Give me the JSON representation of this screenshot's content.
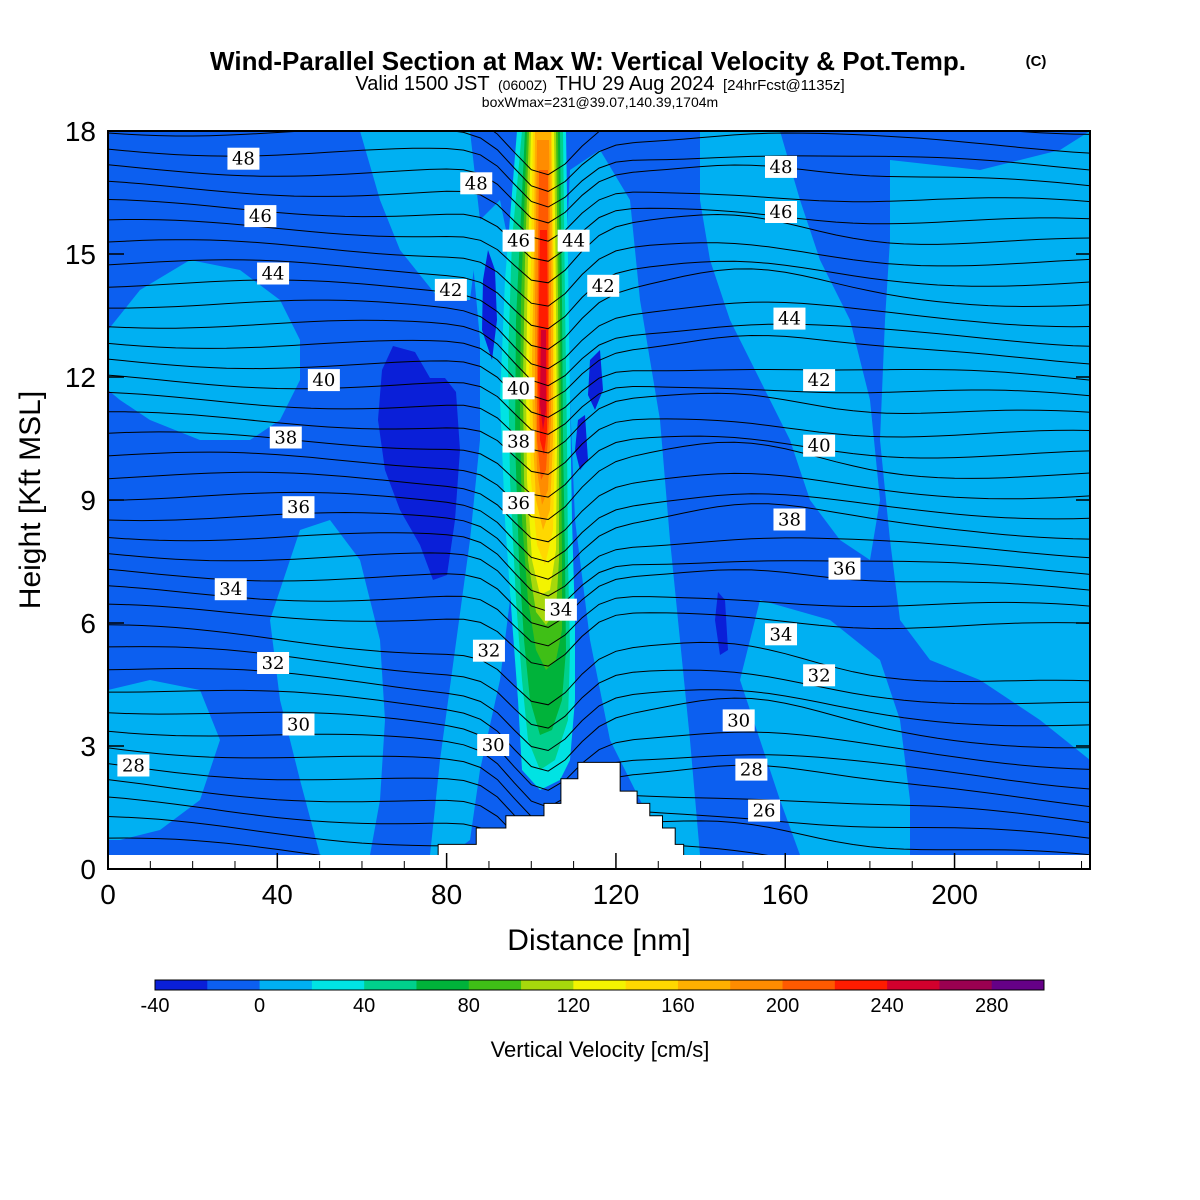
{
  "header": {
    "title_main": "Wind-Parallel Section at Max W: Vertical Velocity & Pot.Temp.",
    "title_mark": "(C)",
    "valid_prefix": "Valid 1500 JST",
    "valid_z": "(0600Z)",
    "valid_date": "THU 29 Aug 2024",
    "forecast": "[24hrFcst@1135z]",
    "box_info": "boxWmax=231@39.07,140.39,1704m"
  },
  "colorbar": {
    "label": "Vertical Velocity [cm/s]",
    "ticks": [
      "-40",
      "0",
      "40",
      "80",
      "120",
      "160",
      "200",
      "240",
      "280"
    ],
    "levels": [
      -40,
      -20,
      0,
      20,
      40,
      60,
      80,
      100,
      120,
      140,
      160,
      180,
      200,
      220,
      240,
      260,
      280,
      300
    ],
    "colors": [
      "#0a1fd8",
      "#0c5ff0",
      "#00b0f2",
      "#00e3e3",
      "#00d08c",
      "#00b33a",
      "#3fbf16",
      "#a6d80c",
      "#f3f300",
      "#ffd800",
      "#ffb000",
      "#ff8c00",
      "#ff5a00",
      "#ff1c00",
      "#d2002d",
      "#9a0050",
      "#650087"
    ]
  },
  "chart_data": {
    "type": "heatmap",
    "title": "Wind-Parallel Section at Max W: Vertical Velocity & Pot.Temp.",
    "xlabel": "Distance [nm]",
    "ylabel": "Height [Kft MSL]",
    "xlim": [
      0,
      232
    ],
    "ylim": [
      0,
      18
    ],
    "x_ticks": [
      "0",
      "40",
      "80",
      "120",
      "160",
      "200"
    ],
    "y_ticks": [
      "0",
      "3",
      "6",
      "9",
      "12",
      "15",
      "18"
    ],
    "colorbar_label": "Vertical Velocity [cm/s]",
    "max_w": {
      "value": 231,
      "units": "cm/s",
      "x": 104,
      "y_range": [
        9,
        12
      ]
    },
    "updraft_core": {
      "x_center": 103,
      "y_range": [
        2.5,
        18
      ],
      "peak": 231
    },
    "downdraft_core": {
      "x_range": [
        65,
        85
      ],
      "y_range": [
        7,
        13
      ],
      "min": -40
    },
    "terrain": {
      "x": [
        78,
        80,
        82,
        87,
        90,
        94,
        98,
        103,
        107,
        111,
        117,
        121,
        125,
        128,
        131,
        134,
        136
      ],
      "height": [
        0.6,
        0.6,
        0.6,
        1.0,
        1.0,
        1.3,
        1.3,
        1.6,
        2.2,
        2.6,
        2.6,
        1.9,
        1.6,
        1.3,
        1.0,
        0.6,
        0.3
      ]
    },
    "contour_labels": [
      {
        "text": "48",
        "x": 32,
        "y": 17.3
      },
      {
        "text": "48",
        "x": 87,
        "y": 16.7
      },
      {
        "text": "48",
        "x": 159,
        "y": 17.1
      },
      {
        "text": "46",
        "x": 36,
        "y": 15.9
      },
      {
        "text": "46",
        "x": 97,
        "y": 15.3
      },
      {
        "text": "44",
        "x": 110,
        "y": 15.3
      },
      {
        "text": "46",
        "x": 159,
        "y": 16.0
      },
      {
        "text": "44",
        "x": 39,
        "y": 14.5
      },
      {
        "text": "42",
        "x": 81,
        "y": 14.1
      },
      {
        "text": "42",
        "x": 117,
        "y": 14.2
      },
      {
        "text": "44",
        "x": 161,
        "y": 13.4
      },
      {
        "text": "40",
        "x": 51,
        "y": 11.9
      },
      {
        "text": "40",
        "x": 97,
        "y": 11.7
      },
      {
        "text": "42",
        "x": 168,
        "y": 11.9
      },
      {
        "text": "38",
        "x": 42,
        "y": 10.5
      },
      {
        "text": "38",
        "x": 97,
        "y": 10.4
      },
      {
        "text": "40",
        "x": 168,
        "y": 10.3
      },
      {
        "text": "36",
        "x": 45,
        "y": 8.8
      },
      {
        "text": "36",
        "x": 97,
        "y": 8.9
      },
      {
        "text": "38",
        "x": 161,
        "y": 8.5
      },
      {
        "text": "34",
        "x": 29,
        "y": 6.8
      },
      {
        "text": "34",
        "x": 107,
        "y": 6.3
      },
      {
        "text": "36",
        "x": 174,
        "y": 7.3
      },
      {
        "text": "32",
        "x": 39,
        "y": 5.0
      },
      {
        "text": "32",
        "x": 90,
        "y": 5.3
      },
      {
        "text": "34",
        "x": 159,
        "y": 5.7
      },
      {
        "text": "32",
        "x": 168,
        "y": 4.7
      },
      {
        "text": "30",
        "x": 45,
        "y": 3.5
      },
      {
        "text": "30",
        "x": 91,
        "y": 3.0
      },
      {
        "text": "30",
        "x": 149,
        "y": 3.6
      },
      {
        "text": "28",
        "x": 6,
        "y": 2.5
      },
      {
        "text": "28",
        "x": 152,
        "y": 2.4
      },
      {
        "text": "26",
        "x": 155,
        "y": 1.4
      }
    ]
  }
}
